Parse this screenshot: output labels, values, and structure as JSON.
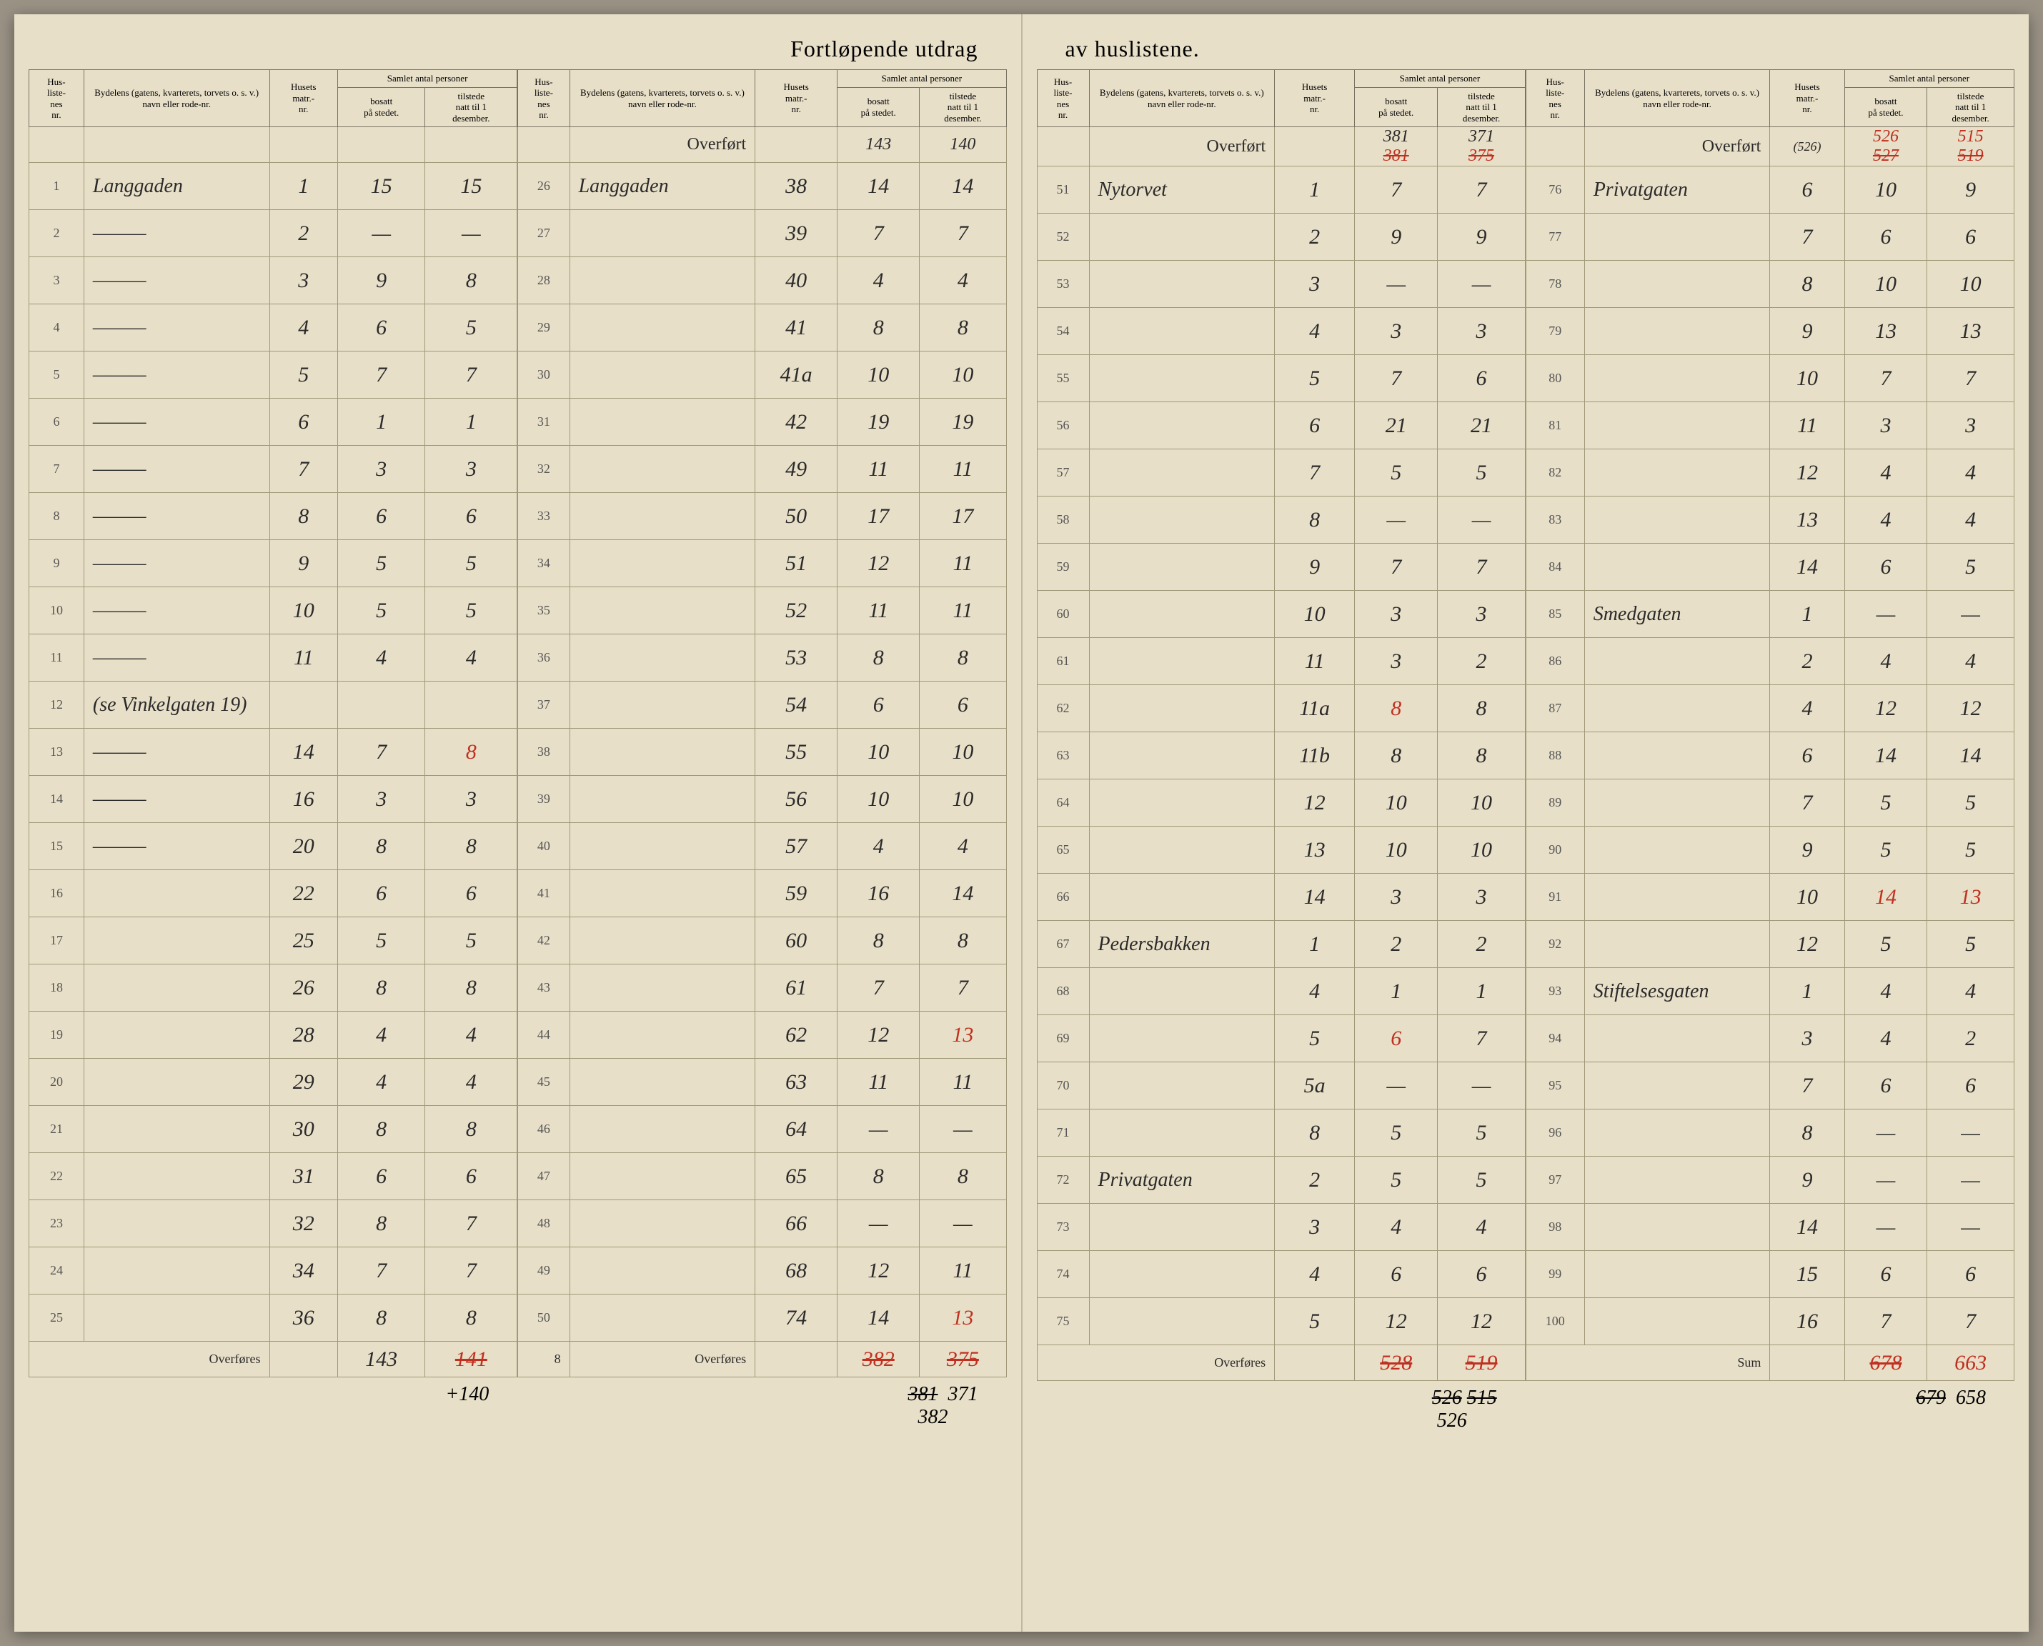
{
  "doc_title_left": "Fortløpende utdrag",
  "doc_title_right": "av huslistene.",
  "headers": {
    "husliste_nr": "Hus-\nliste-\nnes\nnr.",
    "bydelens": "Bydelens (gatens, kvarterets, torvets o. s. v.) navn eller rode-nr.",
    "husets_matr": "Husets\nmatr.-\nnr.",
    "samlet": "Samlet antal personer",
    "bosatt": "bosatt\npå stedet.",
    "tilstede": "tilstede\nnatt til 1\ndesember."
  },
  "overfort_label": "Overført",
  "overfores_label": "Overføres",
  "sum_label": "Sum",
  "col1": {
    "rows": [
      {
        "nr": "1",
        "name": "Langgaden",
        "matr": "1",
        "bosatt": "15",
        "tilstede": "15"
      },
      {
        "nr": "2",
        "name": "———",
        "matr": "2",
        "bosatt": "—",
        "tilstede": "—"
      },
      {
        "nr": "3",
        "name": "———",
        "matr": "3",
        "bosatt": "9",
        "tilstede": "8"
      },
      {
        "nr": "4",
        "name": "———",
        "matr": "4",
        "bosatt": "6",
        "tilstede": "5"
      },
      {
        "nr": "5",
        "name": "———",
        "matr": "5",
        "bosatt": "7",
        "tilstede": "7"
      },
      {
        "nr": "6",
        "name": "———",
        "matr": "6",
        "bosatt": "1",
        "tilstede": "1"
      },
      {
        "nr": "7",
        "name": "———",
        "matr": "7",
        "bosatt": "3",
        "tilstede": "3"
      },
      {
        "nr": "8",
        "name": "———",
        "matr": "8",
        "bosatt": "6",
        "tilstede": "6"
      },
      {
        "nr": "9",
        "name": "———",
        "matr": "9",
        "bosatt": "5",
        "tilstede": "5"
      },
      {
        "nr": "10",
        "name": "———",
        "matr": "10",
        "bosatt": "5",
        "tilstede": "5"
      },
      {
        "nr": "11",
        "name": "———",
        "matr": "11",
        "bosatt": "4",
        "tilstede": "4"
      },
      {
        "nr": "12",
        "name": "(se Vinkelgaten 19)",
        "matr": "",
        "bosatt": "",
        "tilstede": ""
      },
      {
        "nr": "13",
        "name": "———",
        "matr": "14",
        "bosatt": "7",
        "tilstede": "8",
        "tilstede_red": true
      },
      {
        "nr": "14",
        "name": "———",
        "matr": "16",
        "bosatt": "3",
        "tilstede": "3"
      },
      {
        "nr": "15",
        "name": "———",
        "matr": "20",
        "bosatt": "8",
        "tilstede": "8"
      },
      {
        "nr": "16",
        "name": "",
        "matr": "22",
        "bosatt": "6",
        "tilstede": "6"
      },
      {
        "nr": "17",
        "name": "",
        "matr": "25",
        "bosatt": "5",
        "tilstede": "5"
      },
      {
        "nr": "18",
        "name": "",
        "matr": "26",
        "bosatt": "8",
        "tilstede": "8"
      },
      {
        "nr": "19",
        "name": "",
        "matr": "28",
        "bosatt": "4",
        "tilstede": "4"
      },
      {
        "nr": "20",
        "name": "",
        "matr": "29",
        "bosatt": "4",
        "tilstede": "4"
      },
      {
        "nr": "21",
        "name": "",
        "matr": "30",
        "bosatt": "8",
        "tilstede": "8"
      },
      {
        "nr": "22",
        "name": "",
        "matr": "31",
        "bosatt": "6",
        "tilstede": "6"
      },
      {
        "nr": "23",
        "name": "",
        "matr": "32",
        "bosatt": "8",
        "tilstede": "7"
      },
      {
        "nr": "24",
        "name": "",
        "matr": "34",
        "bosatt": "7",
        "tilstede": "7"
      },
      {
        "nr": "25",
        "name": "",
        "matr": "36",
        "bosatt": "8",
        "tilstede": "8"
      }
    ],
    "footer_bosatt": "143",
    "footer_tilstede": "141",
    "footer_tilstede_strike": true,
    "below": "+140"
  },
  "col2": {
    "overfort_bosatt": "143",
    "overfort_tilstede": "140",
    "rows": [
      {
        "nr": "26",
        "name": "Langgaden",
        "matr": "38",
        "bosatt": "14",
        "tilstede": "14"
      },
      {
        "nr": "27",
        "name": "",
        "matr": "39",
        "bosatt": "7",
        "tilstede": "7"
      },
      {
        "nr": "28",
        "name": "",
        "matr": "40",
        "bosatt": "4",
        "tilstede": "4"
      },
      {
        "nr": "29",
        "name": "",
        "matr": "41",
        "bosatt": "8",
        "tilstede": "8"
      },
      {
        "nr": "30",
        "name": "",
        "matr": "41a",
        "bosatt": "10",
        "tilstede": "10"
      },
      {
        "nr": "31",
        "name": "",
        "matr": "42",
        "bosatt": "19",
        "tilstede": "19"
      },
      {
        "nr": "32",
        "name": "",
        "matr": "49",
        "bosatt": "11",
        "tilstede": "11"
      },
      {
        "nr": "33",
        "name": "",
        "matr": "50",
        "bosatt": "17",
        "tilstede": "17"
      },
      {
        "nr": "34",
        "name": "",
        "matr": "51",
        "bosatt": "12",
        "tilstede": "11"
      },
      {
        "nr": "35",
        "name": "",
        "matr": "52",
        "bosatt": "11",
        "tilstede": "11"
      },
      {
        "nr": "36",
        "name": "",
        "matr": "53",
        "bosatt": "8",
        "tilstede": "8"
      },
      {
        "nr": "37",
        "name": "",
        "matr": "54",
        "bosatt": "6",
        "tilstede": "6"
      },
      {
        "nr": "38",
        "name": "",
        "matr": "55",
        "bosatt": "10",
        "tilstede": "10"
      },
      {
        "nr": "39",
        "name": "",
        "matr": "56",
        "bosatt": "10",
        "tilstede": "10"
      },
      {
        "nr": "40",
        "name": "",
        "matr": "57",
        "bosatt": "4",
        "tilstede": "4"
      },
      {
        "nr": "41",
        "name": "",
        "matr": "59",
        "bosatt": "16",
        "tilstede": "14"
      },
      {
        "nr": "42",
        "name": "",
        "matr": "60",
        "bosatt": "8",
        "tilstede": "8"
      },
      {
        "nr": "43",
        "name": "",
        "matr": "61",
        "bosatt": "7",
        "tilstede": "7"
      },
      {
        "nr": "44",
        "name": "",
        "matr": "62",
        "bosatt": "12",
        "tilstede": "13",
        "tilstede_red": true
      },
      {
        "nr": "45",
        "name": "",
        "matr": "63",
        "bosatt": "11",
        "tilstede": "11"
      },
      {
        "nr": "46",
        "name": "",
        "matr": "64",
        "bosatt": "—",
        "tilstede": "—"
      },
      {
        "nr": "47",
        "name": "",
        "matr": "65",
        "bosatt": "8",
        "tilstede": "8"
      },
      {
        "nr": "48",
        "name": "",
        "matr": "66",
        "bosatt": "—",
        "tilstede": "—"
      },
      {
        "nr": "49",
        "name": "",
        "matr": "68",
        "bosatt": "12",
        "tilstede": "11"
      },
      {
        "nr": "50",
        "name": "",
        "matr": "74",
        "bosatt": "14",
        "tilstede": "13",
        "tilstede_red": true
      }
    ],
    "footer_name": "8",
    "footer_bosatt": "382",
    "footer_bosatt_strike": true,
    "footer_tilstede": "375",
    "footer_tilstede_strike": true,
    "below1_b": "381",
    "below1_t": "371",
    "below2": "382"
  },
  "col3": {
    "overfort_bosatt": "381",
    "overfort_tilstede": "371",
    "overfort_strike_b": "381",
    "overfort_strike_t": "375",
    "rows": [
      {
        "nr": "51",
        "name": "Nytorvet",
        "matr": "1",
        "bosatt": "7",
        "tilstede": "7"
      },
      {
        "nr": "52",
        "name": "",
        "matr": "2",
        "bosatt": "9",
        "tilstede": "9"
      },
      {
        "nr": "53",
        "name": "",
        "matr": "3",
        "bosatt": "—",
        "tilstede": "—"
      },
      {
        "nr": "54",
        "name": "",
        "matr": "4",
        "bosatt": "3",
        "tilstede": "3"
      },
      {
        "nr": "55",
        "name": "",
        "matr": "5",
        "bosatt": "7",
        "tilstede": "6"
      },
      {
        "nr": "56",
        "name": "",
        "matr": "6",
        "bosatt": "21",
        "tilstede": "21"
      },
      {
        "nr": "57",
        "name": "",
        "matr": "7",
        "bosatt": "5",
        "tilstede": "5"
      },
      {
        "nr": "58",
        "name": "",
        "matr": "8",
        "bosatt": "—",
        "tilstede": "—"
      },
      {
        "nr": "59",
        "name": "",
        "matr": "9",
        "bosatt": "7",
        "tilstede": "7"
      },
      {
        "nr": "60",
        "name": "",
        "matr": "10",
        "bosatt": "3",
        "tilstede": "3"
      },
      {
        "nr": "61",
        "name": "",
        "matr": "11",
        "bosatt": "3",
        "tilstede": "2"
      },
      {
        "nr": "62",
        "name": "",
        "matr": "11a",
        "bosatt": "8",
        "tilstede": "8",
        "bosatt_red": true
      },
      {
        "nr": "63",
        "name": "",
        "matr": "11b",
        "bosatt": "8",
        "tilstede": "8"
      },
      {
        "nr": "64",
        "name": "",
        "matr": "12",
        "bosatt": "10",
        "tilstede": "10"
      },
      {
        "nr": "65",
        "name": "",
        "matr": "13",
        "bosatt": "10",
        "tilstede": "10"
      },
      {
        "nr": "66",
        "name": "",
        "matr": "14",
        "bosatt": "3",
        "tilstede": "3"
      },
      {
        "nr": "67",
        "name": "Pedersbakken",
        "matr": "1",
        "bosatt": "2",
        "tilstede": "2"
      },
      {
        "nr": "68",
        "name": "",
        "matr": "4",
        "bosatt": "1",
        "tilstede": "1"
      },
      {
        "nr": "69",
        "name": "",
        "matr": "5",
        "bosatt": "6",
        "tilstede": "7",
        "bosatt_red": true
      },
      {
        "nr": "70",
        "name": "",
        "matr": "5a",
        "bosatt": "—",
        "tilstede": "—"
      },
      {
        "nr": "71",
        "name": "",
        "matr": "8",
        "bosatt": "5",
        "tilstede": "5"
      },
      {
        "nr": "72",
        "name": "Privatgaten",
        "matr": "2",
        "bosatt": "5",
        "tilstede": "5"
      },
      {
        "nr": "73",
        "name": "",
        "matr": "3",
        "bosatt": "4",
        "tilstede": "4"
      },
      {
        "nr": "74",
        "name": "",
        "matr": "4",
        "bosatt": "6",
        "tilstede": "6"
      },
      {
        "nr": "75",
        "name": "",
        "matr": "5",
        "bosatt": "12",
        "tilstede": "12"
      }
    ],
    "footer_bosatt": "528",
    "footer_bosatt_strike": true,
    "footer_tilstede": "519",
    "footer_tilstede_strike": true,
    "below1_b": "526",
    "below1_t": "515",
    "below2": "526"
  },
  "col4": {
    "overfort_bosatt": "526",
    "overfort_tilstede": "515",
    "overfort_paren": "(526)",
    "overfort_strike_b": "527",
    "overfort_strike_t": "519",
    "rows": [
      {
        "nr": "76",
        "name": "Privatgaten",
        "matr": "6",
        "bosatt": "10",
        "tilstede": "9"
      },
      {
        "nr": "77",
        "name": "",
        "matr": "7",
        "bosatt": "6",
        "tilstede": "6"
      },
      {
        "nr": "78",
        "name": "",
        "matr": "8",
        "bosatt": "10",
        "tilstede": "10"
      },
      {
        "nr": "79",
        "name": "",
        "matr": "9",
        "bosatt": "13",
        "tilstede": "13"
      },
      {
        "nr": "80",
        "name": "",
        "matr": "10",
        "bosatt": "7",
        "tilstede": "7"
      },
      {
        "nr": "81",
        "name": "",
        "matr": "11",
        "bosatt": "3",
        "tilstede": "3"
      },
      {
        "nr": "82",
        "name": "",
        "matr": "12",
        "bosatt": "4",
        "tilstede": "4"
      },
      {
        "nr": "83",
        "name": "",
        "matr": "13",
        "bosatt": "4",
        "tilstede": "4"
      },
      {
        "nr": "84",
        "name": "",
        "matr": "14",
        "bosatt": "6",
        "tilstede": "5"
      },
      {
        "nr": "85",
        "name": "Smedgaten",
        "matr": "1",
        "bosatt": "—",
        "tilstede": "—"
      },
      {
        "nr": "86",
        "name": "",
        "matr": "2",
        "bosatt": "4",
        "tilstede": "4"
      },
      {
        "nr": "87",
        "name": "",
        "matr": "4",
        "bosatt": "12",
        "tilstede": "12"
      },
      {
        "nr": "88",
        "name": "",
        "matr": "6",
        "bosatt": "14",
        "tilstede": "14"
      },
      {
        "nr": "89",
        "name": "",
        "matr": "7",
        "bosatt": "5",
        "tilstede": "5"
      },
      {
        "nr": "90",
        "name": "",
        "matr": "9",
        "bosatt": "5",
        "tilstede": "5"
      },
      {
        "nr": "91",
        "name": "",
        "matr": "10",
        "bosatt": "14",
        "tilstede": "13",
        "bosatt_red": true,
        "tilstede_red": true
      },
      {
        "nr": "92",
        "name": "",
        "matr": "12",
        "bosatt": "5",
        "tilstede": "5"
      },
      {
        "nr": "93",
        "name": "Stiftelsesgaten",
        "matr": "1",
        "bosatt": "4",
        "tilstede": "4"
      },
      {
        "nr": "94",
        "name": "",
        "matr": "3",
        "bosatt": "4",
        "tilstede": "2"
      },
      {
        "nr": "95",
        "name": "",
        "matr": "7",
        "bosatt": "6",
        "tilstede": "6"
      },
      {
        "nr": "96",
        "name": "",
        "matr": "8",
        "bosatt": "—",
        "tilstede": "—"
      },
      {
        "nr": "97",
        "name": "",
        "matr": "9",
        "bosatt": "—",
        "tilstede": "—"
      },
      {
        "nr": "98",
        "name": "",
        "matr": "14",
        "bosatt": "—",
        "tilstede": "—"
      },
      {
        "nr": "99",
        "name": "",
        "matr": "15",
        "bosatt": "6",
        "tilstede": "6"
      },
      {
        "nr": "100",
        "name": "",
        "matr": "16",
        "bosatt": "7",
        "tilstede": "7"
      }
    ],
    "footer_bosatt": "678",
    "footer_bosatt_strike": true,
    "footer_tilstede": "663",
    "footer_tilstede_red": true,
    "below1_b": "679",
    "below1_t": "658",
    "below1_b_strike": true
  }
}
